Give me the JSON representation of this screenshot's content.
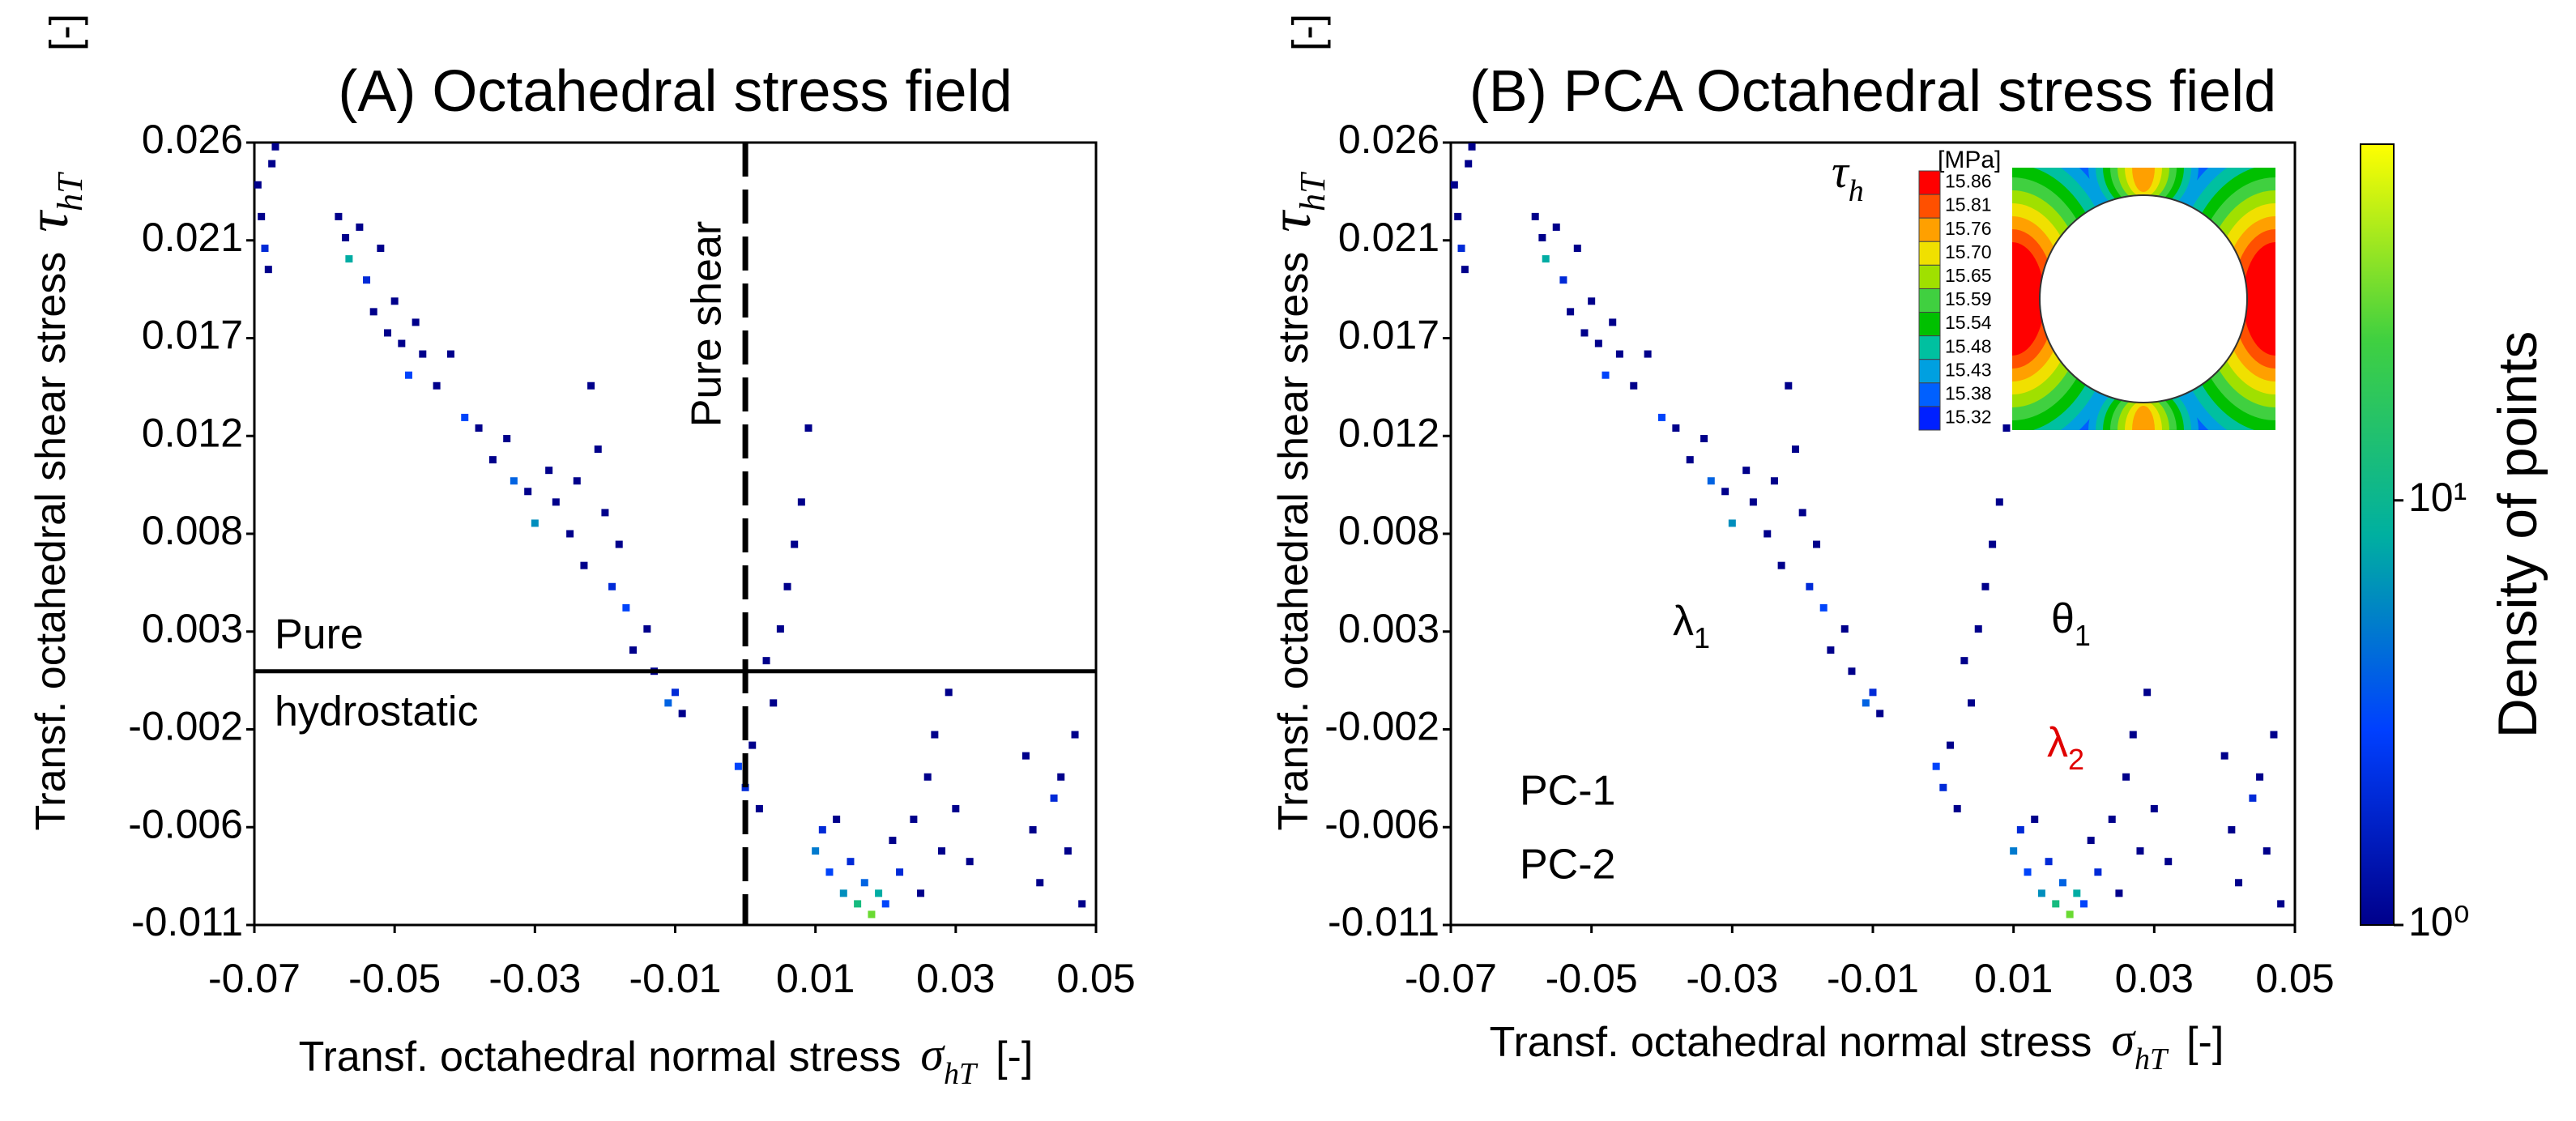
{
  "chart_data": [
    {
      "type": "scatter",
      "title": "(A) Octahedral stress field",
      "x_label": "Transf. octahedral normal stress",
      "x_symbol": "σ",
      "x_symbol_sub": "hT",
      "x_unit": "[-]",
      "y_label": "Transf. octahedral shear stress",
      "y_symbol": "τ",
      "y_symbol_sub": "hT",
      "y_unit": "[-]",
      "xlim": [
        -0.07,
        0.05
      ],
      "xticks": [
        -0.07,
        -0.05,
        -0.03,
        -0.01,
        0.01,
        0.03,
        0.05
      ],
      "ylim": [
        -0.011,
        0.026
      ],
      "yticks": [
        {
          "value": -0.011,
          "label": "-0.011"
        },
        {
          "value": -0.006375,
          "label": "-0.006"
        },
        {
          "value": -0.00175,
          "label": "-0.002"
        },
        {
          "value": 0.002875,
          "label": "0.003"
        },
        {
          "value": 0.0075,
          "label": "0.008"
        },
        {
          "value": 0.012125,
          "label": "0.012"
        },
        {
          "value": 0.01675,
          "label": "0.017"
        },
        {
          "value": 0.021375,
          "label": "0.021"
        },
        {
          "value": 0.026,
          "label": "0.026"
        }
      ],
      "colormap": [
        "#00008b",
        "#0040ff",
        "#00b0a0",
        "#40d040",
        "#ffff00"
      ],
      "clim": [
        1,
        69
      ],
      "log_color": true,
      "x": [
        -0.0695,
        -0.069,
        -0.0685,
        -0.068,
        -0.0675,
        -0.067,
        -0.058,
        -0.057,
        -0.0565,
        -0.055,
        -0.054,
        -0.053,
        -0.052,
        -0.051,
        -0.05,
        -0.049,
        -0.048,
        -0.047,
        -0.046,
        -0.044,
        -0.042,
        -0.04,
        -0.038,
        -0.036,
        -0.034,
        -0.033,
        -0.031,
        -0.03,
        -0.028,
        -0.027,
        -0.025,
        -0.024,
        -0.023,
        -0.022,
        -0.021,
        -0.02,
        -0.019,
        -0.018,
        -0.017,
        -0.016,
        -0.014,
        -0.013,
        -0.011,
        -0.01,
        -0.009,
        -0.001,
        0,
        0.001,
        0.002,
        0.003,
        0.004,
        0.005,
        0.006,
        0.007,
        0.008,
        0.009,
        0.01,
        0.011,
        0.012,
        0.013,
        0.014,
        0.015,
        0.016,
        0.017,
        0.018,
        0.019,
        0.02,
        0.021,
        0.022,
        0.024,
        0.025,
        0.026,
        0.027,
        0.028,
        0.029,
        0.03,
        0.032,
        0.04,
        0.041,
        0.042,
        0.044,
        0.045,
        0.046,
        0.047,
        0.048
      ],
      "y": [
        0.024,
        0.0225,
        0.021,
        0.02,
        0.025,
        0.0258,
        0.0225,
        0.0215,
        0.0205,
        0.022,
        0.0195,
        0.018,
        0.021,
        0.017,
        0.0185,
        0.0165,
        0.015,
        0.0175,
        0.016,
        0.0145,
        0.016,
        0.013,
        0.0125,
        0.011,
        0.012,
        0.01,
        0.0095,
        0.008,
        0.0105,
        0.009,
        0.0075,
        0.01,
        0.006,
        0.0145,
        0.0115,
        0.0085,
        0.005,
        0.007,
        0.004,
        0.002,
        0.003,
        0.001,
        -0.0005,
        0,
        -0.001,
        -0.0035,
        -0.0045,
        -0.0025,
        -0.0055,
        0.0015,
        -0.0005,
        0.003,
        0.005,
        0.007,
        0.009,
        0.0125,
        -0.0075,
        -0.0065,
        -0.0085,
        -0.006,
        -0.0095,
        -0.008,
        -0.01,
        -0.009,
        -0.0105,
        -0.0095,
        -0.01,
        -0.007,
        -0.0085,
        -0.006,
        -0.0095,
        -0.004,
        -0.002,
        -0.0075,
        0,
        -0.0055,
        -0.008,
        -0.003,
        -0.0065,
        -0.009,
        -0.005,
        -0.004,
        -0.0075,
        -0.002,
        -0.01
      ],
      "density": [
        1,
        1,
        2,
        1,
        1,
        1,
        1,
        1,
        8,
        1,
        2,
        1,
        1,
        1,
        1,
        1,
        3,
        1,
        1,
        1,
        1,
        3,
        1,
        1,
        1,
        4,
        1,
        6,
        1,
        1,
        1,
        1,
        1,
        1,
        1,
        1,
        2,
        1,
        3,
        1,
        1,
        1,
        4,
        2,
        1,
        3,
        2,
        1,
        1,
        1,
        1,
        1,
        1,
        1,
        1,
        1,
        5,
        2,
        3,
        1,
        6,
        2,
        12,
        4,
        30,
        8,
        3,
        1,
        2,
        1,
        1,
        1,
        1,
        1,
        1,
        1,
        1,
        1,
        1,
        1,
        2,
        1,
        1,
        1,
        1
      ],
      "vline": 0,
      "hline": 0.001,
      "annotations": {
        "shear": "Pure shear",
        "hydro_1": "Pure",
        "hydro_2": "hydrostatic"
      }
    },
    {
      "type": "scatter",
      "title": "(B) PCA Octahedral stress field",
      "x_label": "Transf. octahedral normal stress",
      "x_symbol": "σ",
      "x_symbol_sub": "hT",
      "x_unit": "[-]",
      "y_label": "Transf. octahedral shear stress",
      "y_symbol": "τ",
      "y_symbol_sub": "hT",
      "y_unit": "[-]",
      "xlim": [
        -0.07,
        0.05
      ],
      "xticks": [
        -0.07,
        -0.05,
        -0.03,
        -0.01,
        0.01,
        0.03,
        0.05
      ],
      "ylim": [
        -0.011,
        0.026
      ],
      "yticks": [
        {
          "value": -0.011,
          "label": "-0.011"
        },
        {
          "value": -0.006375,
          "label": "-0.006"
        },
        {
          "value": -0.00175,
          "label": "-0.002"
        },
        {
          "value": 0.002875,
          "label": "0.003"
        },
        {
          "value": 0.0075,
          "label": "0.008"
        },
        {
          "value": 0.012125,
          "label": "0.012"
        },
        {
          "value": 0.01675,
          "label": "0.017"
        },
        {
          "value": 0.021375,
          "label": "0.021"
        },
        {
          "value": 0.026,
          "label": "0.026"
        }
      ],
      "colormap": [
        "#00008b",
        "#0040ff",
        "#00b0a0",
        "#40d040",
        "#ffff00"
      ],
      "clim": [
        1,
        69
      ],
      "log_color": true,
      "x": [
        -0.0695,
        -0.069,
        -0.0685,
        -0.068,
        -0.0675,
        -0.067,
        -0.058,
        -0.057,
        -0.0565,
        -0.055,
        -0.054,
        -0.053,
        -0.052,
        -0.051,
        -0.05,
        -0.049,
        -0.048,
        -0.047,
        -0.046,
        -0.044,
        -0.042,
        -0.04,
        -0.038,
        -0.036,
        -0.034,
        -0.033,
        -0.031,
        -0.03,
        -0.028,
        -0.027,
        -0.025,
        -0.024,
        -0.023,
        -0.022,
        -0.021,
        -0.02,
        -0.019,
        -0.018,
        -0.017,
        -0.016,
        -0.014,
        -0.013,
        -0.011,
        -0.01,
        -0.009,
        -0.001,
        0,
        0.001,
        0.002,
        0.003,
        0.004,
        0.005,
        0.006,
        0.007,
        0.008,
        0.009,
        0.01,
        0.011,
        0.012,
        0.013,
        0.014,
        0.015,
        0.016,
        0.017,
        0.018,
        0.019,
        0.02,
        0.021,
        0.022,
        0.024,
        0.025,
        0.026,
        0.027,
        0.028,
        0.029,
        0.03,
        0.032,
        0.04,
        0.041,
        0.042,
        0.044,
        0.045,
        0.046,
        0.047,
        0.048
      ],
      "y": [
        0.024,
        0.0225,
        0.021,
        0.02,
        0.025,
        0.0258,
        0.0225,
        0.0215,
        0.0205,
        0.022,
        0.0195,
        0.018,
        0.021,
        0.017,
        0.0185,
        0.0165,
        0.015,
        0.0175,
        0.016,
        0.0145,
        0.016,
        0.013,
        0.0125,
        0.011,
        0.012,
        0.01,
        0.0095,
        0.008,
        0.0105,
        0.009,
        0.0075,
        0.01,
        0.006,
        0.0145,
        0.0115,
        0.0085,
        0.005,
        0.007,
        0.004,
        0.002,
        0.003,
        0.001,
        -0.0005,
        0,
        -0.001,
        -0.0035,
        -0.0045,
        -0.0025,
        -0.0055,
        0.0015,
        -0.0005,
        0.003,
        0.005,
        0.007,
        0.009,
        0.0125,
        -0.0075,
        -0.0065,
        -0.0085,
        -0.006,
        -0.0095,
        -0.008,
        -0.01,
        -0.009,
        -0.0105,
        -0.0095,
        -0.01,
        -0.007,
        -0.0085,
        -0.006,
        -0.0095,
        -0.004,
        -0.002,
        -0.0075,
        0,
        -0.0055,
        -0.008,
        -0.003,
        -0.0065,
        -0.009,
        -0.005,
        -0.004,
        -0.0075,
        -0.002,
        -0.01
      ],
      "density": [
        1,
        1,
        2,
        1,
        1,
        1,
        1,
        1,
        8,
        1,
        2,
        1,
        1,
        1,
        1,
        1,
        3,
        1,
        1,
        1,
        1,
        3,
        1,
        1,
        1,
        4,
        1,
        6,
        1,
        1,
        1,
        1,
        1,
        1,
        1,
        1,
        2,
        1,
        3,
        1,
        1,
        1,
        4,
        2,
        1,
        3,
        2,
        1,
        1,
        1,
        1,
        1,
        1,
        1,
        1,
        1,
        5,
        2,
        3,
        1,
        6,
        2,
        12,
        4,
        30,
        8,
        3,
        1,
        2,
        1,
        1,
        1,
        1,
        1,
        1,
        1,
        1,
        1,
        1,
        1,
        2,
        1,
        1,
        1,
        1
      ],
      "annotations": {
        "pc1": "PC-1",
        "pc2": "PC-2",
        "lambda": "λ",
        "sub_1": "1",
        "sub_2": "2",
        "theta": "θ"
      },
      "inset": {
        "symbol": "τ",
        "symbol_sub": "h",
        "unit": "[MPa]",
        "levels": [
          15.86,
          15.81,
          15.76,
          {
            "value": 15.7,
            "label": "15.70"
          },
          15.65,
          15.59,
          15.54,
          15.48,
          15.43,
          15.38,
          15.32
        ],
        "level_colors": [
          "#ff0000",
          "#ff5000",
          "#ffa000",
          "#f0e000",
          "#a0e000",
          "#40d040",
          "#00c000",
          "#00c0a0",
          "#00a0e0",
          "#0060ff",
          "#0020ff"
        ]
      },
      "colorbar": {
        "label": "Density of points",
        "log": true,
        "clim": [
          1,
          69
        ],
        "ticks": [
          {
            "value": 1,
            "label": "10⁰"
          },
          {
            "value": 10,
            "label": "10¹"
          }
        ]
      }
    }
  ]
}
